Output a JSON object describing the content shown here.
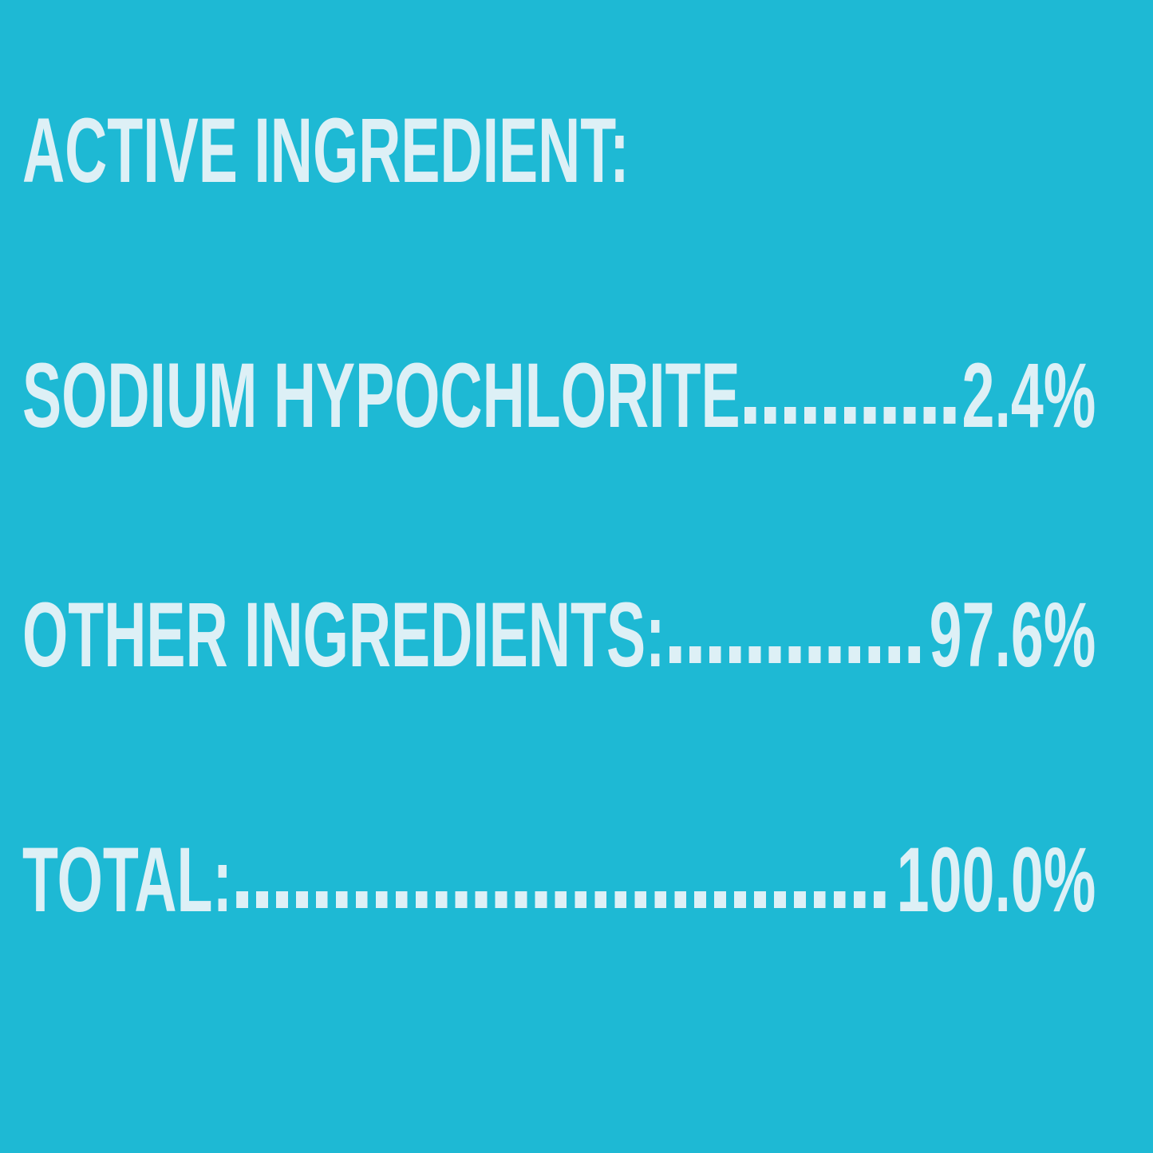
{
  "label_panel": {
    "background_color": "#1eb9d4",
    "text_color": "#ddf0f6",
    "heading": "ACTIVE INGREDIENT:",
    "rows": [
      {
        "label": "SODIUM HYPOCHLORITE",
        "value": "2.4%"
      },
      {
        "label": "OTHER INGREDIENTS:",
        "value": "97.6%"
      },
      {
        "label": "TOTAL:",
        "value": "100.0%"
      }
    ]
  }
}
